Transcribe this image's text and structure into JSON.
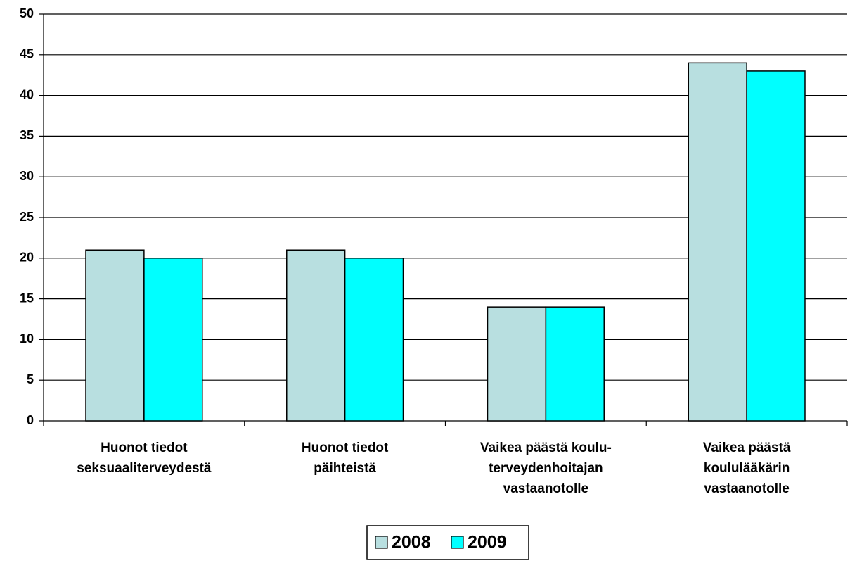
{
  "chart_data": {
    "type": "bar",
    "categories": [
      [
        "Huonot tiedot",
        "seksuaaliterveydestä"
      ],
      [
        "Huonot tiedot",
        "päihteistä"
      ],
      [
        "Vaikea päästä koulu-",
        "terveydenhoitajan",
        "vastaanotolle"
      ],
      [
        "Vaikea päästä",
        "koululääkärin",
        "vastaanotolle"
      ]
    ],
    "series": [
      {
        "name": "2008",
        "color": "#b8dfe0",
        "values": [
          21,
          21,
          14,
          44
        ]
      },
      {
        "name": "2009",
        "color": "#00ffff",
        "values": [
          20,
          20,
          14,
          43
        ]
      }
    ],
    "ylim": [
      0,
      50
    ],
    "yticks": [
      0,
      5,
      10,
      15,
      20,
      25,
      30,
      35,
      40,
      45,
      50
    ],
    "grid": true,
    "legend": "bottom"
  }
}
